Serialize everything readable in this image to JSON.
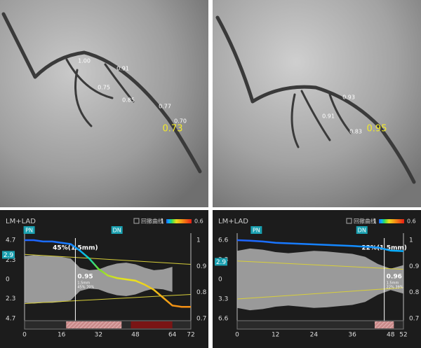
{
  "angiograms": [
    {
      "labels": [
        "1.00",
        "0.91",
        "0.75",
        "0.85",
        "0.77",
        "0.70"
      ],
      "ffr": "0.73"
    },
    {
      "labels": [
        "0.93",
        "0.91",
        "0.83"
      ],
      "ffr": "0.95"
    }
  ],
  "chart_data": [
    {
      "type": "pullback",
      "title": "LM+LAD",
      "legend": "回撤曲线",
      "legend_ticks": [
        1,
        0.6
      ],
      "markers": [
        {
          "label": "PN",
          "x": 2
        },
        {
          "label": "DN",
          "x": 40
        }
      ],
      "selected": 2.9,
      "x": [
        0,
        4,
        8,
        12,
        16,
        20,
        24,
        28,
        32,
        36,
        40,
        44,
        48,
        52,
        56,
        60,
        64,
        68,
        72
      ],
      "ffr": [
        1.0,
        1.0,
        0.995,
        0.995,
        0.99,
        0.985,
        0.96,
        0.93,
        0.89,
        0.865,
        0.855,
        0.85,
        0.845,
        0.83,
        0.81,
        0.78,
        0.75,
        0.745,
        0.745
      ],
      "radius": [
        2.8,
        2.9,
        2.8,
        2.8,
        2.7,
        2.5,
        1.4,
        1.1,
        1.2,
        1.6,
        1.9,
        2.0,
        1.8,
        1.4,
        1.1,
        1.2,
        1.5,
        null,
        null
      ],
      "ref_upper": [
        3.0,
        1.8
      ],
      "ref_lower": [
        -2.9,
        -1.8
      ],
      "stenosis": {
        "x": 22,
        "label": "45%(1.5mm)",
        "ffr": "0.95",
        "mld": "1.5mm",
        "detail": "45% 70%"
      },
      "segments": [
        {
          "start": 18,
          "end": 42,
          "color": "#c98a8a",
          "pattern": "hatch"
        },
        {
          "start": 46,
          "end": 64,
          "color": "#7a1515",
          "pattern": "solid"
        }
      ],
      "xlim": [
        0,
        72
      ],
      "xticks": [
        0,
        16,
        32,
        48,
        64,
        72
      ],
      "ylim": [
        -4.7,
        4.7
      ],
      "yticks": [
        4.7,
        2.3,
        0,
        {
          "value": -2.3,
          "label": "2.3"
        },
        {
          "value": -4.7,
          "label": "4.7"
        }
      ],
      "y2lim": [
        0.7,
        1
      ],
      "y2ticks": [
        1,
        0.9,
        0.8,
        0.7
      ]
    },
    {
      "type": "pullback",
      "title": "LM+LAD",
      "legend": "回撤曲线",
      "legend_ticks": [
        1,
        0.6
      ],
      "markers": [
        {
          "label": "PN",
          "x": 6
        },
        {
          "label": "DN",
          "x": 39
        }
      ],
      "selected": 2.9,
      "x": [
        0,
        4,
        8,
        12,
        16,
        20,
        24,
        28,
        32,
        36,
        40,
        44,
        48,
        52
      ],
      "ffr": [
        1.0,
        0.998,
        0.995,
        0.99,
        0.988,
        0.986,
        0.984,
        0.982,
        0.98,
        0.978,
        0.975,
        0.972,
        0.96,
        0.958
      ],
      "radius": [
        4.8,
        5.2,
        5.0,
        4.6,
        4.4,
        4.6,
        4.8,
        4.7,
        4.5,
        4.3,
        3.8,
        2.6,
        1.8,
        2.4
      ],
      "ref_upper": [
        3.1,
        1.7
      ],
      "ref_lower": [
        -3.3,
        -1.4
      ],
      "stenosis": {
        "x": 46,
        "label": "22%(1.5mm)",
        "ffr": "0.96",
        "mld": "1.5mm",
        "detail": "22% 39%"
      },
      "segments": [
        {
          "start": 43,
          "end": 49,
          "color": "#c98a8a",
          "pattern": "hatch"
        }
      ],
      "xlim": [
        0,
        52
      ],
      "xticks": [
        0,
        12,
        24,
        36,
        48,
        52
      ],
      "ylim": [
        -6.6,
        6.6
      ],
      "yticks": [
        6.6,
        3.3,
        0,
        {
          "value": -3.3,
          "label": "3.3"
        },
        {
          "value": -6.6,
          "label": "6.6"
        }
      ],
      "y2lim": [
        0.7,
        1
      ],
      "y2ticks": [
        1,
        0.9,
        0.8,
        0.7
      ]
    }
  ]
}
